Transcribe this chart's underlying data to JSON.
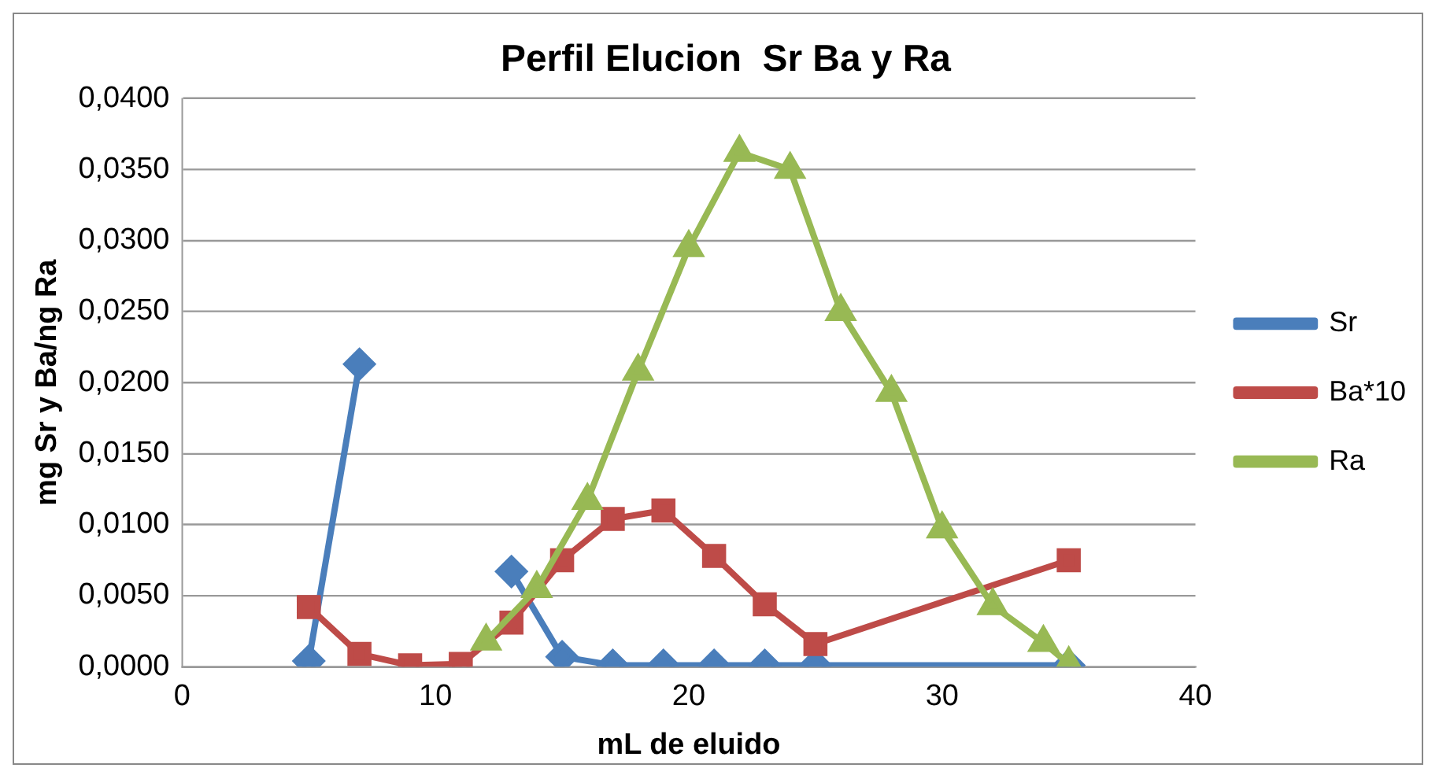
{
  "chart_data": {
    "type": "line",
    "title": "Perfil Elucion  Sr Ba y Ra",
    "xlabel": "mL de eluido",
    "ylabel": "mg Sr y Ba/ng Ra",
    "xlim": [
      0,
      40
    ],
    "xticks": [
      0,
      10,
      20,
      30,
      40
    ],
    "ylim": [
      0,
      0.04
    ],
    "yticks": [
      {
        "value": 0,
        "label": "0,0000"
      },
      {
        "value": 0.005,
        "label": "0,0050"
      },
      {
        "value": 0.01,
        "label": "0,0100"
      },
      {
        "value": 0.015,
        "label": "0,0150"
      },
      {
        "value": 0.02,
        "label": "0,0200"
      },
      {
        "value": 0.025,
        "label": "0,0250"
      },
      {
        "value": 0.03,
        "label": "0,0300"
      },
      {
        "value": 0.035,
        "label": "0,0350"
      },
      {
        "value": 0.04,
        "label": "0,0400"
      }
    ],
    "grid": "y",
    "legend": "right",
    "series": [
      {
        "name": "Sr",
        "color": "#4a7ebb",
        "marker": "diamond",
        "x": [
          5,
          7,
          9,
          11,
          13,
          15,
          17,
          19,
          21,
          23,
          25,
          35
        ],
        "values": [
          0.0004,
          0.0213,
          null,
          null,
          0.0067,
          0.0007,
          0.0001,
          0.0001,
          0.0001,
          0.0001,
          0.0001,
          0.0001
        ]
      },
      {
        "name": "Ba*10",
        "color": "#be4b48",
        "marker": "square",
        "x": [
          5,
          7,
          9,
          11,
          13,
          15,
          17,
          19,
          21,
          23,
          25,
          35
        ],
        "values": [
          0.0042,
          0.0009,
          0.0001,
          0.0002,
          0.0031,
          0.0075,
          0.0104,
          0.011,
          0.0078,
          0.0044,
          0.0016,
          0.0075
        ]
      },
      {
        "name": "Ra",
        "color": "#98b954",
        "marker": "triangle",
        "x": [
          12,
          14,
          16,
          18,
          20,
          22,
          24,
          26,
          28,
          30,
          32,
          34,
          35
        ],
        "values": [
          0.0018,
          0.0055,
          0.0117,
          0.0208,
          0.0295,
          0.0362,
          0.035,
          0.025,
          0.0193,
          0.0097,
          0.0043,
          0.0017,
          0.0002
        ]
      }
    ]
  }
}
